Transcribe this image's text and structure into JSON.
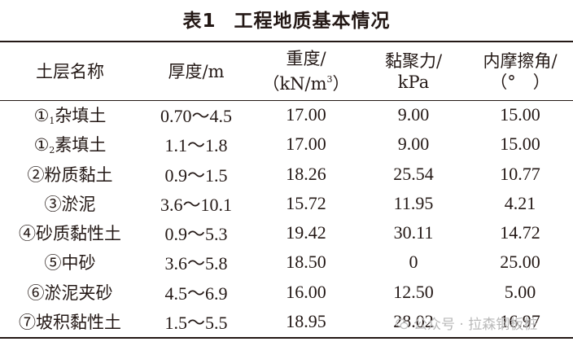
{
  "table": {
    "label": "表1",
    "title": "工程地质基本情况",
    "headers": {
      "h1": "土层名称",
      "h2": "厚度/m",
      "h3a": "重度/",
      "h3b_pre": "（kN/m",
      "h3b_sup": "3",
      "h3b_post": "）",
      "h4a": "黏聚力/",
      "h4b": "kPa",
      "h5a": "内摩擦角/",
      "h5b": "（°　）"
    },
    "rows": [
      {
        "name_pre": "①",
        "name_sub": "1",
        "name_post": "杂填土",
        "thickness": "0.70～4.5",
        "unit_weight": "17.00",
        "cohesion": "9.00",
        "friction_angle": "15.00"
      },
      {
        "name_pre": "①",
        "name_sub": "2",
        "name_post": "素填土",
        "thickness": "1.1～1.8",
        "unit_weight": "17.00",
        "cohesion": "9.00",
        "friction_angle": "15.00"
      },
      {
        "name_pre": "②粉质黏土",
        "name_sub": "",
        "name_post": "",
        "thickness": "0.9～1.5",
        "unit_weight": "18.26",
        "cohesion": "25.54",
        "friction_angle": "10.77"
      },
      {
        "name_pre": "③淤泥",
        "name_sub": "",
        "name_post": "",
        "thickness": "3.6～10.1",
        "unit_weight": "15.72",
        "cohesion": "11.95",
        "friction_angle": "4.21"
      },
      {
        "name_pre": "④砂质黏性土",
        "name_sub": "",
        "name_post": "",
        "thickness": "0.9～5.3",
        "unit_weight": "19.42",
        "cohesion": "30.11",
        "friction_angle": "14.72"
      },
      {
        "name_pre": "⑤中砂",
        "name_sub": "",
        "name_post": "",
        "thickness": "3.6～5.8",
        "unit_weight": "18.50",
        "cohesion": "0",
        "friction_angle": "25.00"
      },
      {
        "name_pre": "⑥淤泥夹砂",
        "name_sub": "",
        "name_post": "",
        "thickness": "4.5～6.9",
        "unit_weight": "16.00",
        "cohesion": "12.50",
        "friction_angle": "5.00"
      },
      {
        "name_pre": "⑦坡积黏性土",
        "name_sub": "",
        "name_post": "",
        "thickness": "1.5～5.5",
        "unit_weight": "18.95",
        "cohesion": "28.02",
        "friction_angle": "16.97"
      }
    ]
  },
  "watermark": {
    "text": "公众号 · 拉森钢板桩",
    "icon": "wechat-icon",
    "color": "#b9b9b9"
  }
}
